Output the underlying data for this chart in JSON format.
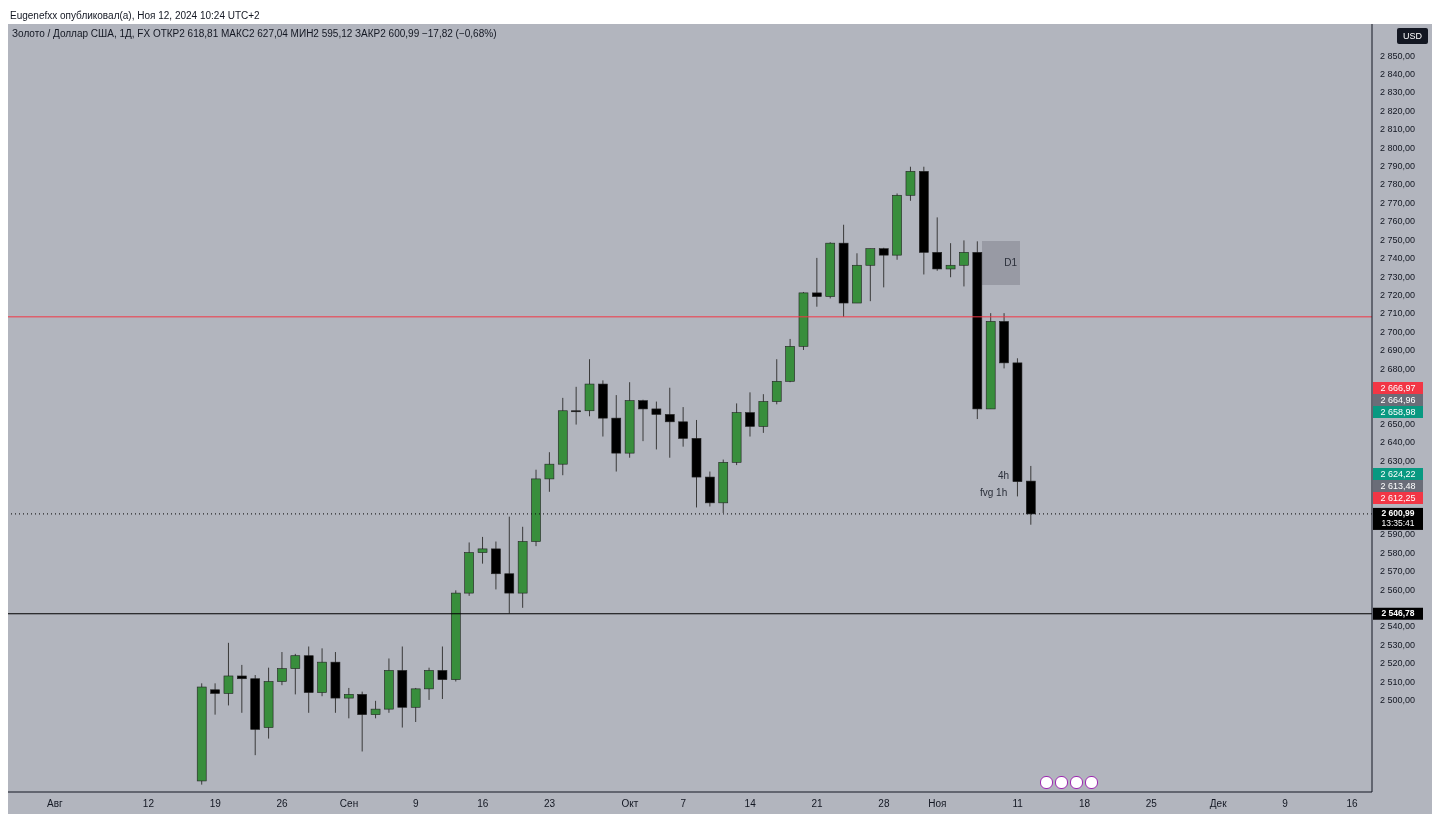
{
  "chart_data": {
    "type": "candlestick",
    "title": "Золото / Доллар США, 1Д, FX  ОТКР2 618,81  МАКС2 627,04  МИН2 595,12  ЗАКР2 600,99  −17,82 (−0,68%)",
    "ylabel": "USD",
    "annotations": [
      "Eugenefxx опубликовал(а), Ноя 12, 2024 10:24 UTC+2",
      "2 666,97",
      "2 664,96",
      "2 658,98",
      "2 624,22",
      "2 613,48",
      "2 612,25",
      "D1",
      "4h",
      "fvg 1h"
    ],
    "categories": [
      null,
      null,
      null,
      "Авг",
      null,
      null,
      null,
      null,
      null,
      null,
      "12",
      null,
      null,
      null,
      null,
      "19",
      null,
      null,
      null,
      null,
      "26",
      null,
      null,
      null,
      null,
      "Сен",
      null,
      null,
      null,
      null,
      "9",
      null,
      null,
      null,
      null,
      "16",
      null,
      null,
      null,
      null,
      "23",
      null,
      null,
      null,
      null,
      null,
      "Окт",
      null,
      null,
      null,
      "7",
      null,
      null,
      null,
      null,
      "14",
      null,
      null,
      null,
      null,
      "21",
      null,
      null,
      null,
      null,
      "28",
      null,
      null,
      null,
      "Ноя",
      null,
      null,
      null,
      null,
      null,
      "11",
      null,
      null,
      null,
      null,
      "18",
      null,
      null,
      null,
      null,
      "25",
      null,
      null,
      null,
      null,
      "Дек",
      null,
      null,
      null,
      null,
      "9",
      null,
      null,
      null,
      null,
      "16",
      null
    ],
    "ohlc": [
      null,
      null,
      null,
      null,
      null,
      null,
      null,
      null,
      null,
      null,
      null,
      null,
      null,
      null,
      [
        2456,
        2509,
        2454,
        2507
      ],
      [
        2505.5,
        2509,
        2492,
        2503.5
      ],
      [
        2503.5,
        2531,
        2497,
        2513
      ],
      [
        2513,
        2519,
        2493,
        2511.5
      ],
      [
        2511.5,
        2513.5,
        2470,
        2484
      ],
      [
        2485,
        2517.5,
        2479,
        2510
      ],
      [
        2510,
        2526,
        2508,
        2517
      ],
      [
        2517,
        2525,
        2503,
        2524
      ],
      [
        2524,
        2529,
        2493,
        2504
      ],
      [
        2504,
        2528,
        2502,
        2520.5
      ],
      [
        2520.5,
        2526,
        2493,
        2501
      ],
      [
        2501,
        2506.5,
        2490,
        2503
      ],
      [
        2503,
        2504.5,
        2472,
        2492
      ],
      [
        2492,
        2499.5,
        2490,
        2495
      ],
      [
        2495,
        2522.5,
        2493,
        2516
      ],
      [
        2516,
        2529,
        2485,
        2496
      ],
      [
        2496,
        2506.5,
        2488,
        2506
      ],
      [
        2506,
        2517.5,
        2500,
        2516
      ],
      [
        2516,
        2529,
        2500.5,
        2511
      ],
      [
        2511,
        2559.5,
        2510,
        2558
      ],
      [
        2558,
        2585.5,
        2556.5,
        2580
      ],
      [
        2580,
        2588.5,
        2574,
        2582
      ],
      [
        2582,
        2586,
        2560,
        2568.5
      ],
      [
        2568.5,
        2599.5,
        2547,
        2558
      ],
      [
        2558,
        2594,
        2550,
        2586
      ],
      [
        2586,
        2625,
        2583.5,
        2620
      ],
      [
        2620,
        2634.5,
        2613,
        2628
      ],
      [
        2628,
        2664,
        2622,
        2657
      ],
      [
        2657,
        2670,
        2649.5,
        2657
      ],
      [
        2657,
        2685,
        2654,
        2671.5
      ],
      [
        2671.5,
        2673.5,
        2643,
        2653
      ],
      [
        2653,
        2665.5,
        2624,
        2634
      ],
      [
        2634,
        2672.5,
        2631.5,
        2662.5
      ],
      [
        2662.5,
        2663,
        2640.5,
        2658
      ],
      [
        2658,
        2662,
        2636,
        2655
      ],
      [
        2655,
        2669.5,
        2631.5,
        2651
      ],
      [
        2651,
        2659,
        2637.5,
        2642
      ],
      [
        2642,
        2652,
        2604.5,
        2621
      ],
      [
        2621,
        2624,
        2605,
        2607
      ],
      [
        2607,
        2630.5,
        2601.5,
        2629
      ],
      [
        2629,
        2661,
        2627.5,
        2656
      ],
      [
        2656,
        2667,
        2643,
        2648.5
      ],
      [
        2648.5,
        2666,
        2645,
        2662
      ],
      [
        2662,
        2685,
        2660.5,
        2673
      ],
      [
        2673,
        2696,
        2672.5,
        2692
      ],
      [
        2692,
        2721.5,
        2690,
        2721
      ],
      [
        2721,
        2740,
        2713.5,
        2719
      ],
      [
        2719,
        2748.5,
        2718,
        2748
      ],
      [
        2748,
        2758,
        2708,
        2715.5
      ],
      [
        2715.5,
        2742.5,
        2715.5,
        2736
      ],
      [
        2736,
        2745,
        2716.5,
        2745
      ],
      [
        2745,
        2745.5,
        2724,
        2741.5
      ],
      [
        2741.5,
        2775,
        2739,
        2774
      ],
      [
        2774,
        2789.5,
        2771,
        2787
      ],
      [
        2787,
        2789.5,
        2731,
        2743
      ],
      [
        2743,
        2762,
        2733,
        2734
      ],
      [
        2734,
        2748,
        2729.5,
        2736
      ],
      [
        2736,
        2749.5,
        2724.5,
        2743
      ],
      [
        2743,
        2749,
        2652.5,
        2658
      ],
      [
        2658,
        2710,
        2658,
        2705.5
      ],
      [
        2705.5,
        2710,
        2680,
        2683
      ],
      [
        2683,
        2685.5,
        2610.5,
        2618.5
      ],
      [
        2618.81,
        2627.04,
        2595.12,
        2600.99
      ],
      null,
      null,
      null,
      null,
      null,
      null,
      null,
      null,
      null,
      null,
      null,
      null,
      null,
      null,
      null,
      null,
      null,
      null,
      null,
      null,
      null,
      null,
      null,
      null,
      null
    ],
    "colors": [
      null,
      null,
      null,
      null,
      null,
      null,
      null,
      null,
      null,
      null,
      null,
      null,
      null,
      null,
      "#388e3c",
      "#000000",
      "#388e3c",
      "#000000",
      "#000000",
      "#388e3c",
      "#388e3c",
      "#388e3c",
      "#000000",
      "#388e3c",
      "#000000",
      "#388e3c",
      "#000000",
      "#388e3c",
      "#388e3c",
      "#000000",
      "#388e3c",
      "#388e3c",
      "#000000",
      "#388e3c",
      "#388e3c",
      "#388e3c",
      "#000000",
      "#000000",
      "#388e3c",
      "#388e3c",
      "#388e3c",
      "#388e3c",
      "#000000",
      "#388e3c",
      "#000000",
      "#000000",
      "#388e3c",
      "#000000",
      "#000000",
      "#000000",
      "#000000",
      "#000000",
      "#000000",
      "#388e3c",
      "#388e3c",
      "#000000",
      "#388e3c",
      "#388e3c",
      "#388e3c",
      "#388e3c",
      "#000000",
      "#388e3c",
      "#000000",
      "#388e3c",
      "#388e3c",
      "#000000",
      "#388e3c",
      "#388e3c",
      "#000000",
      "#000000",
      "#388e3c",
      "#388e3c",
      "#000000",
      "#388e3c",
      "#000000",
      "#000000",
      "#000000",
      null,
      null,
      null,
      null,
      null,
      null,
      null,
      null,
      null,
      null,
      null,
      null,
      null,
      null,
      null,
      null,
      null,
      null,
      null,
      null,
      null,
      null,
      null,
      null,
      null
    ],
    "ylim": [
      2450,
      2867
    ],
    "yticks": [
      {
        "value": 2500,
        "label": "2 500,00"
      },
      {
        "value": 2510,
        "label": "2 510,00"
      },
      {
        "value": 2520,
        "label": "2 520,00"
      },
      {
        "value": 2530,
        "label": "2 530,00"
      },
      {
        "value": 2540,
        "label": "2 540,00"
      },
      {
        "value": 2560,
        "label": "2 560,00"
      },
      {
        "value": 2570,
        "label": "2 570,00"
      },
      {
        "value": 2580,
        "label": "2 580,00"
      },
      {
        "value": 2590,
        "label": "2 590,00"
      },
      {
        "value": 2630,
        "label": "2 630,00"
      },
      {
        "value": 2640,
        "label": "2 640,00"
      },
      {
        "value": 2650,
        "label": "2 650,00"
      },
      {
        "value": 2680,
        "label": "2 680,00"
      },
      {
        "value": 2690,
        "label": "2 690,00"
      },
      {
        "value": 2700,
        "label": "2 700,00"
      },
      {
        "value": 2710,
        "label": "2 710,00"
      },
      {
        "value": 2720,
        "label": "2 720,00"
      },
      {
        "value": 2730,
        "label": "2 730,00"
      },
      {
        "value": 2740,
        "label": "2 740,00"
      },
      {
        "value": 2750,
        "label": "2 750,00"
      },
      {
        "value": 2760,
        "label": "2 760,00"
      },
      {
        "value": 2770,
        "label": "2 770,00"
      },
      {
        "value": 2780,
        "label": "2 780,00"
      },
      {
        "value": 2790,
        "label": "2 790,00"
      },
      {
        "value": 2800,
        "label": "2 800,00"
      },
      {
        "value": 2810,
        "label": "2 810,00"
      },
      {
        "value": 2820,
        "label": "2 820,00"
      },
      {
        "value": 2830,
        "label": "2 830,00"
      },
      {
        "value": 2840,
        "label": "2 840,00"
      },
      {
        "value": 2850,
        "label": "2 850,00"
      }
    ],
    "ref_lines": [
      {
        "axis": "y",
        "value": 2708,
        "color": "#f23645",
        "line_style": "solid"
      },
      {
        "axis": "y",
        "value": 2546.78,
        "label": "2 546,78",
        "color": "#000000",
        "line_style": "solid"
      },
      {
        "axis": "y",
        "value": 2600.99,
        "label": "2 600,99\n13:35:41",
        "color": "#000000",
        "line_style": "dotted"
      }
    ]
  }
}
